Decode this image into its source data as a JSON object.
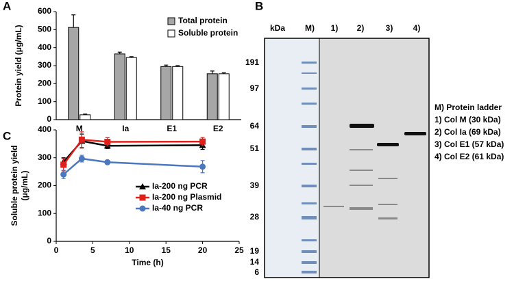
{
  "chart_data": [
    {
      "type": "bar",
      "panel": "A",
      "ylabel": "Protein yield (μg/mL)",
      "categories": [
        "M",
        "Ia",
        "E1",
        "E2"
      ],
      "series": [
        {
          "name": "Total protein",
          "color": "#a6a6a6",
          "values": [
            512,
            365,
            295,
            255
          ],
          "errors": [
            70,
            10,
            8,
            15
          ]
        },
        {
          "name": "Soluble protein",
          "color": "#ffffff",
          "values": [
            27,
            345,
            295,
            255
          ],
          "errors": [
            4,
            5,
            5,
            5
          ]
        }
      ],
      "ylim": [
        0,
        600
      ],
      "yticks": [
        0,
        100,
        200,
        300,
        400,
        500,
        600
      ],
      "legend": "top-right"
    },
    {
      "type": "line",
      "panel": "C",
      "xlabel": "Time (h)",
      "ylabel": [
        "Soluble protein yield",
        "(μg/mL)"
      ],
      "x": [
        1,
        3.5,
        7,
        20
      ],
      "series": [
        {
          "name": "Ia-200 ng PCR",
          "color": "#000000",
          "marker": "triangle",
          "values": [
            285,
            360,
            343,
            345
          ],
          "errors": [
            15,
            25,
            10,
            15
          ]
        },
        {
          "name": "Ia-200 ng Plasmid",
          "color": "#e0201b",
          "marker": "square",
          "values": [
            275,
            365,
            357,
            358
          ],
          "errors": [
            22,
            28,
            15,
            15
          ]
        },
        {
          "name": "Ia-40 ng PCR",
          "color": "#4a77be",
          "marker": "circle",
          "values": [
            240,
            297,
            284,
            268
          ],
          "errors": [
            15,
            12,
            5,
            22
          ]
        }
      ],
      "xlim": [
        0,
        25
      ],
      "xticks": [
        0,
        5,
        10,
        15,
        20,
        25
      ],
      "ylim": [
        0,
        400
      ],
      "yticks": [
        0,
        100,
        200,
        300,
        400
      ],
      "legend": "bottom-center"
    }
  ],
  "gel": {
    "panel": "B",
    "unit": "kDa",
    "lanes": [
      "M)",
      "1)",
      "2)",
      "3)",
      "4)"
    ],
    "markers": [
      "191",
      "97",
      "64",
      "51",
      "39",
      "28",
      "19",
      "14",
      "6"
    ],
    "legend": [
      "M) Protein ladder",
      "1) Col M (30 kDa)",
      "2) Col Ia (69 kDa)",
      "3) Col E1 (57 kDa)",
      "4) Col E2 (61 kDa)"
    ]
  }
}
